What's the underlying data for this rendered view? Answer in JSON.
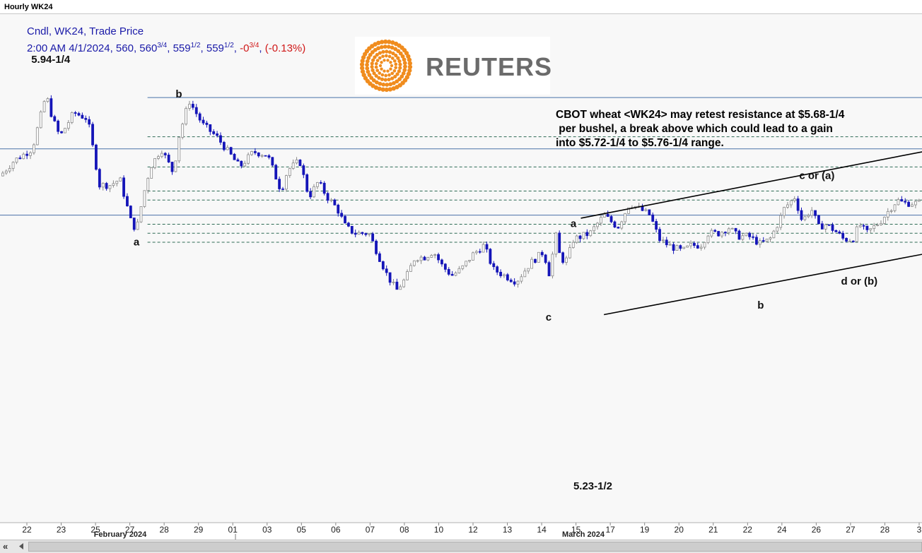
{
  "window": {
    "title": "Hourly WK24"
  },
  "legend": {
    "line1": "Cndl, WK24, Trade Price",
    "line2_prefix": "2:00 AM 4/1/2024, 560, 560",
    "o_frac": "3/4",
    "sep1": ", 559",
    "h_frac": "1/2",
    "sep2": ", 559",
    "l_frac": "1/2",
    "sep3": ", ",
    "change": "-0",
    "change_frac": "3/4",
    "sep4": ", ",
    "change_pct": "(-0.13%)"
  },
  "logo": {
    "text": "REUTERS",
    "accent": "#f08c1e"
  },
  "annotation": {
    "text": "CBOT wheat <WK24> may retest resistance at $5.68-1/4\n per bushel, a break above which could lead to a gain\ninto $5.72-1/4 to $5.76-1/4 range."
  },
  "scrollbar": {
    "left_label": "«"
  },
  "chart_data": {
    "type": "candlestick",
    "instrument": "WK24",
    "interval": "Hourly",
    "y_range": [
      5.18,
      6.0
    ],
    "colors": {
      "up": "#8a8a8a",
      "down": "#1515b8",
      "line": "#4a72a8",
      "channel": "#000000"
    },
    "x_ticks": [
      "22",
      "23",
      "25",
      "27",
      "28",
      "29",
      "01",
      "03",
      "05",
      "06",
      "07",
      "08",
      "10",
      "12",
      "13",
      "14",
      "15",
      "17",
      "19",
      "20",
      "21",
      "22",
      "24",
      "26",
      "27",
      "28",
      "3"
    ],
    "months": [
      "February 2024",
      "March 2024"
    ],
    "path": [
      [
        0.0,
        5.755
      ],
      [
        1.5,
        5.78
      ],
      [
        3.5,
        5.8
      ],
      [
        5.0,
        5.89
      ],
      [
        5.7,
        5.85
      ],
      [
        6.5,
        5.82
      ],
      [
        8.0,
        5.86
      ],
      [
        9.5,
        5.85
      ],
      [
        10.8,
        5.74
      ],
      [
        12.0,
        5.74
      ],
      [
        13.0,
        5.75
      ],
      [
        14.2,
        5.68
      ],
      [
        14.8,
        5.665
      ],
      [
        15.5,
        5.72
      ],
      [
        16.3,
        5.77
      ],
      [
        17.5,
        5.8
      ],
      [
        18.8,
        5.76
      ],
      [
        19.4,
        5.82
      ],
      [
        20.5,
        5.88
      ],
      [
        22.0,
        5.84
      ],
      [
        23.5,
        5.82
      ],
      [
        25.0,
        5.79
      ],
      [
        26.0,
        5.77
      ],
      [
        27.5,
        5.795
      ],
      [
        29.0,
        5.79
      ],
      [
        30.5,
        5.73
      ],
      [
        31.2,
        5.765
      ],
      [
        32.5,
        5.78
      ],
      [
        33.5,
        5.72
      ],
      [
        34.5,
        5.745
      ],
      [
        35.5,
        5.72
      ],
      [
        36.6,
        5.7
      ],
      [
        37.5,
        5.67
      ],
      [
        38.5,
        5.66
      ],
      [
        40.0,
        5.66
      ],
      [
        41.0,
        5.625
      ],
      [
        42.0,
        5.59
      ],
      [
        43.0,
        5.565
      ],
      [
        44.0,
        5.585
      ],
      [
        45.0,
        5.62
      ],
      [
        46.0,
        5.62
      ],
      [
        47.0,
        5.63
      ],
      [
        48.0,
        5.605
      ],
      [
        49.0,
        5.59
      ],
      [
        50.0,
        5.6
      ],
      [
        51.3,
        5.625
      ],
      [
        52.5,
        5.64
      ],
      [
        53.5,
        5.6
      ],
      [
        54.7,
        5.59
      ],
      [
        56.0,
        5.58
      ],
      [
        57.5,
        5.61
      ],
      [
        59.0,
        5.63
      ],
      [
        59.5,
        5.59
      ],
      [
        60.3,
        5.655
      ],
      [
        60.8,
        5.616
      ],
      [
        61.5,
        5.616
      ],
      [
        62.2,
        5.65
      ],
      [
        64.0,
        5.66
      ],
      [
        65.5,
        5.69
      ],
      [
        67.0,
        5.67
      ],
      [
        68.3,
        5.71
      ],
      [
        69.4,
        5.7
      ],
      [
        70.5,
        5.69
      ],
      [
        71.5,
        5.65
      ],
      [
        72.5,
        5.64
      ],
      [
        74.0,
        5.63
      ],
      [
        75.0,
        5.64
      ],
      [
        76.0,
        5.64
      ],
      [
        76.8,
        5.66
      ],
      [
        78.0,
        5.66
      ],
      [
        79.0,
        5.67
      ],
      [
        80.0,
        5.655
      ],
      [
        81.2,
        5.655
      ],
      [
        82.5,
        5.642
      ],
      [
        83.5,
        5.65
      ],
      [
        84.5,
        5.68
      ],
      [
        85.0,
        5.7
      ],
      [
        86.2,
        5.72
      ],
      [
        87.0,
        5.68
      ],
      [
        88.0,
        5.7
      ],
      [
        88.8,
        5.67
      ],
      [
        89.5,
        5.675
      ],
      [
        90.5,
        5.665
      ],
      [
        91.5,
        5.65
      ],
      [
        92.5,
        5.65
      ],
      [
        93.2,
        5.675
      ],
      [
        94.0,
        5.66
      ],
      [
        95.5,
        5.68
      ],
      [
        96.5,
        5.7
      ],
      [
        97.3,
        5.715
      ],
      [
        98.0,
        5.71
      ]
    ],
    "annotations": [
      {
        "text": "5.94-1/4",
        "x": 5.5,
        "y": 5.9425
      },
      {
        "text": "b",
        "x": 19.4,
        "y": 5.885
      },
      {
        "text": "a",
        "x": 14.8,
        "y": 5.64
      },
      {
        "text": "a",
        "x": 62.2,
        "y": 5.67
      },
      {
        "text": "c",
        "x": 59.5,
        "y": 5.515
      },
      {
        "text": "5.23-1/2",
        "x": 64.3,
        "y": 5.235
      },
      {
        "text": "b",
        "x": 82.5,
        "y": 5.535
      },
      {
        "text": "c or (a)",
        "x": 88.6,
        "y": 5.75
      },
      {
        "text": "d or (b)",
        "x": 93.2,
        "y": 5.575
      }
    ],
    "resistance_levels": {
      "solid": [
        5.885,
        5.8,
        5.69
      ],
      "dashed": [
        5.82,
        5.77,
        5.73,
        5.715,
        5.675,
        5.66,
        5.645
      ]
    },
    "channel": {
      "upper": [
        [
          63.0,
          5.685
        ],
        [
          100.0,
          5.795
        ]
      ],
      "lower": [
        [
          65.5,
          5.525
        ],
        [
          100.0,
          5.625
        ]
      ]
    }
  }
}
